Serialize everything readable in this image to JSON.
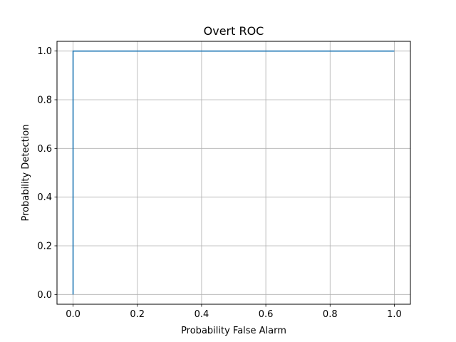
{
  "chart_data": {
    "type": "line",
    "title": "Overt ROC",
    "xlabel": "Probability False Alarm",
    "ylabel": "Probability Detection",
    "xlim": [
      -0.05,
      1.05
    ],
    "ylim": [
      -0.04,
      1.04
    ],
    "xticks": [
      0.0,
      0.2,
      0.4,
      0.6,
      0.8,
      1.0
    ],
    "yticks": [
      0.0,
      0.2,
      0.4,
      0.6,
      0.8,
      1.0
    ],
    "xtick_labels": [
      "0.0",
      "0.2",
      "0.4",
      "0.6",
      "0.8",
      "1.0"
    ],
    "ytick_labels": [
      "0.0",
      "0.2",
      "0.4",
      "0.6",
      "0.8",
      "1.0"
    ],
    "grid": true,
    "colors": {
      "series": "#1f77b4",
      "grid": "#b0b0b0",
      "axes": "#000000"
    },
    "series": [
      {
        "x": [
          0.0,
          0.0,
          1.0
        ],
        "y": [
          0.0,
          1.0,
          1.0
        ]
      }
    ]
  }
}
